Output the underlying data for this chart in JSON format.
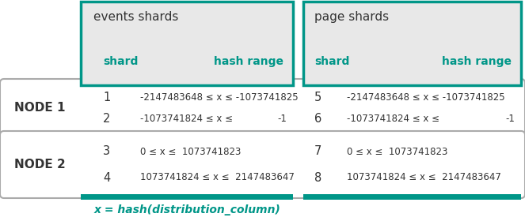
{
  "teal": "#008B8B",
  "teal2": "#009688",
  "light_gray": "#e8e8e8",
  "white": "#ffffff",
  "dark_gray": "#888888",
  "black": "#333333",
  "events_title": "events shards",
  "page_title": "page shards",
  "col_header_shard": "shard",
  "col_header_hash": "hash range",
  "node1_label": "NODE 1",
  "node2_label": "NODE 2",
  "footer": "x = hash(distribution_column)",
  "figw": 6.63,
  "figh": 2.8,
  "dpi": 100
}
